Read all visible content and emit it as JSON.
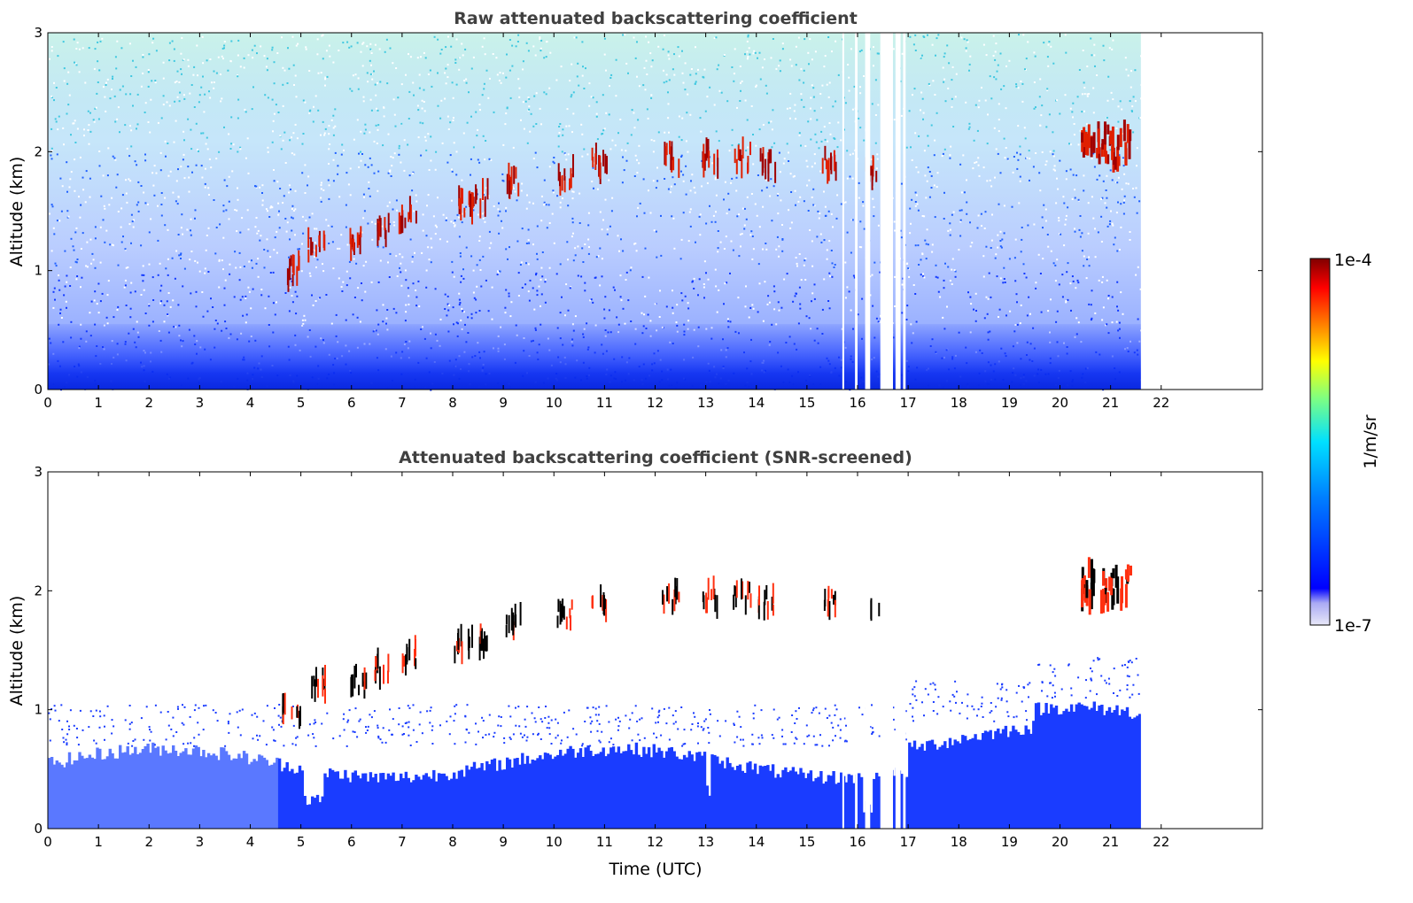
{
  "chart_data": [
    {
      "type": "heatmap",
      "title": "Raw attenuated backscattering coefficient",
      "xlabel": "",
      "ylabel": "Altitude (km)",
      "xlim": [
        0,
        24
      ],
      "ylim": [
        0,
        3
      ],
      "xticks": [
        "0",
        "1",
        "2",
        "3",
        "4",
        "5",
        "6",
        "7",
        "8",
        "9",
        "10",
        "11",
        "12",
        "13",
        "14",
        "15",
        "16",
        "17",
        "18",
        "19",
        "20",
        "21",
        "22"
      ],
      "yticks": [
        "0",
        "1",
        "2",
        "3"
      ],
      "data_end_time": 21.6,
      "missing_gaps": [
        [
          15.7,
          15.72
        ],
        [
          15.95,
          16.0
        ],
        [
          16.15,
          16.25
        ],
        [
          16.45,
          16.7
        ],
        [
          16.75,
          16.85
        ],
        [
          16.9,
          16.95
        ]
      ],
      "cloud_layers": [
        {
          "time": 4.8,
          "alt": 1.0
        },
        {
          "time": 5.3,
          "alt": 1.2
        },
        {
          "time": 6.1,
          "alt": 1.25
        },
        {
          "time": 6.6,
          "alt": 1.35
        },
        {
          "time": 7.1,
          "alt": 1.45
        },
        {
          "time": 8.2,
          "alt": 1.55
        },
        {
          "time": 8.5,
          "alt": 1.6
        },
        {
          "time": 9.2,
          "alt": 1.75
        },
        {
          "time": 10.2,
          "alt": 1.8
        },
        {
          "time": 10.9,
          "alt": 1.9
        },
        {
          "time": 12.3,
          "alt": 1.95
        },
        {
          "time": 13.1,
          "alt": 1.95
        },
        {
          "time": 13.7,
          "alt": 1.95
        },
        {
          "time": 14.2,
          "alt": 1.9
        },
        {
          "time": 15.4,
          "alt": 1.9
        },
        {
          "time": 16.3,
          "alt": 1.85
        },
        {
          "time": 20.9,
          "alt": 2.05
        }
      ],
      "boundary_layer_top_km": 0.55,
      "noise_screened": false
    },
    {
      "type": "heatmap",
      "title": "Attenuated backscattering coefficient (SNR-screened)",
      "xlabel": "Time (UTC)",
      "ylabel": "Altitude (km)",
      "xlim": [
        0,
        24
      ],
      "ylim": [
        0,
        3
      ],
      "xticks": [
        "0",
        "1",
        "2",
        "3",
        "4",
        "5",
        "6",
        "7",
        "8",
        "9",
        "10",
        "11",
        "12",
        "13",
        "14",
        "15",
        "16",
        "17",
        "18",
        "19",
        "20",
        "21",
        "22"
      ],
      "yticks": [
        "0",
        "1",
        "2",
        "3"
      ],
      "data_end_time": 21.6,
      "noise_screened": true,
      "boundary_layer_top_km": 0.75
    }
  ],
  "colorbar": {
    "label": "1/m/sr",
    "max_label": "1e-4",
    "min_label": "1e-7",
    "colormap": "jet",
    "colors": [
      "#e8e8f8",
      "#0000ff",
      "#00ffff",
      "#ffff00",
      "#ff0000",
      "#800000"
    ]
  }
}
